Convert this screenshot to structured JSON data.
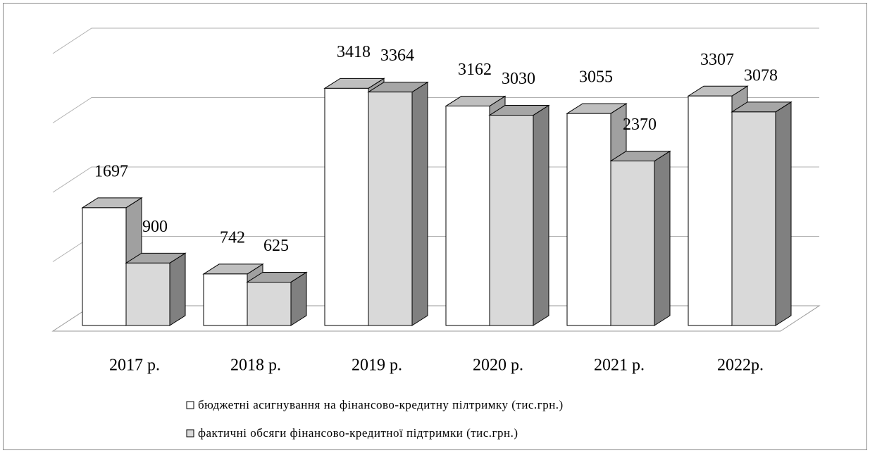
{
  "chart_data": {
    "type": "bar3d",
    "categories": [
      "2017 р.",
      "2018 р.",
      "2019 р.",
      "2020 р.",
      "2021 р.",
      "2022р."
    ],
    "series": [
      {
        "name": "бюджетні асигнування на фінансово-кредитну пілтримку (тис.грн.)",
        "color": "#ffffff",
        "values": [
          1697,
          742,
          3418,
          3162,
          3055,
          3307
        ]
      },
      {
        "name": "фактичні обсяги фінансово-кредитної підтримки (тис.грн.)",
        "color": "#d9d9d9",
        "values": [
          900,
          625,
          3364,
          3030,
          2370,
          3078
        ]
      }
    ],
    "ylim": [
      0,
      4000
    ],
    "yticks": [
      0,
      1000,
      2000,
      3000,
      4000
    ],
    "grid": true,
    "legend": "bottom"
  }
}
